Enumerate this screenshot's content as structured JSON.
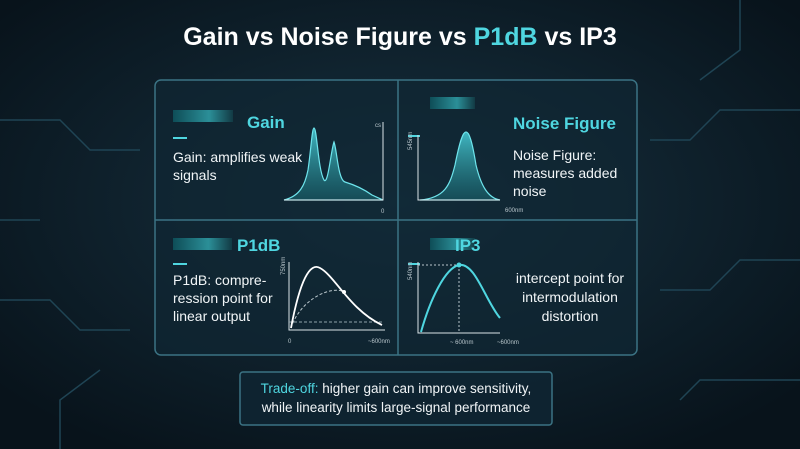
{
  "header": {
    "title_prefix": "Gain vs Noise Figure vs ",
    "title_highlight": "P1dB",
    "title_suffix": " vs IP3"
  },
  "panels": [
    {
      "heading": "Gain",
      "text_lines": [
        "Gain: amplifies weak",
        "signals"
      ],
      "axis_labels": [
        "cs",
        "0"
      ]
    },
    {
      "heading": "Noise Figure",
      "text_lines": [
        "Noise Figure:",
        "measures added",
        "noise"
      ],
      "axis_labels": [
        "545nm",
        "600nm"
      ]
    },
    {
      "heading": "P1dB",
      "text_lines": [
        "P1dB: compre-",
        "ression point for",
        "linear output"
      ],
      "axis_labels": [
        "750nm",
        "0",
        "~600nm"
      ]
    },
    {
      "heading": "IP3",
      "text_lines": [
        "intercept point for",
        "intermodulation",
        "distortion"
      ],
      "axis_labels": [
        "540nm",
        "~ 600nm",
        "~600nm"
      ]
    }
  ],
  "footer": {
    "highlight": "Trade-off:",
    "line1_rest": " higher gain can improve sensitivity,",
    "line2": "while linearity limits large-signal performance"
  }
}
